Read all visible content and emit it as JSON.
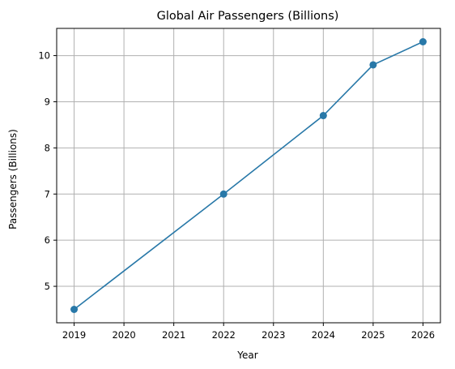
{
  "chart_data": {
    "type": "line",
    "title": "Global Air Passengers (Billions)",
    "xlabel": "Year",
    "ylabel": "Passengers (Billions)",
    "x_ticks": [
      2019,
      2020,
      2021,
      2022,
      2023,
      2024,
      2025,
      2026
    ],
    "y_ticks": [
      5,
      6,
      7,
      8,
      9,
      10
    ],
    "xlim": [
      2018.65,
      2026.35
    ],
    "ylim": [
      4.21,
      10.59
    ],
    "grid": true,
    "legend": "none",
    "series": [
      {
        "x": [
          2019,
          2022,
          2024,
          2025,
          2026
        ],
        "y": [
          4.5,
          7.0,
          8.7,
          9.8,
          10.3
        ],
        "color": "#2878a8",
        "marker": "circle"
      }
    ]
  }
}
